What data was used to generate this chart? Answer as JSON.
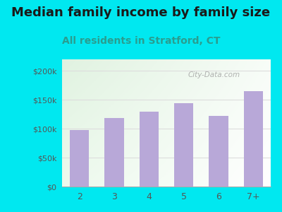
{
  "title": "Median family income by family size",
  "subtitle": "All residents in Stratford, CT",
  "categories": [
    "2",
    "3",
    "4",
    "5",
    "6",
    "7+"
  ],
  "values": [
    98000,
    118000,
    130000,
    144000,
    122000,
    165000
  ],
  "bar_color": "#b8a8d8",
  "title_fontsize": 13,
  "subtitle_fontsize": 10,
  "subtitle_color": "#2a9d8f",
  "title_color": "#1a1a1a",
  "background_outer": "#00e8f0",
  "ylim": [
    0,
    220000
  ],
  "yticks": [
    0,
    50000,
    100000,
    150000,
    200000
  ],
  "ytick_labels": [
    "$0",
    "$50k",
    "$100k",
    "$150k",
    "$200k"
  ],
  "watermark": "City-Data.com",
  "watermark_color": "#aaaaaa",
  "tick_color": "#555555",
  "grid_color": "#dddddd"
}
